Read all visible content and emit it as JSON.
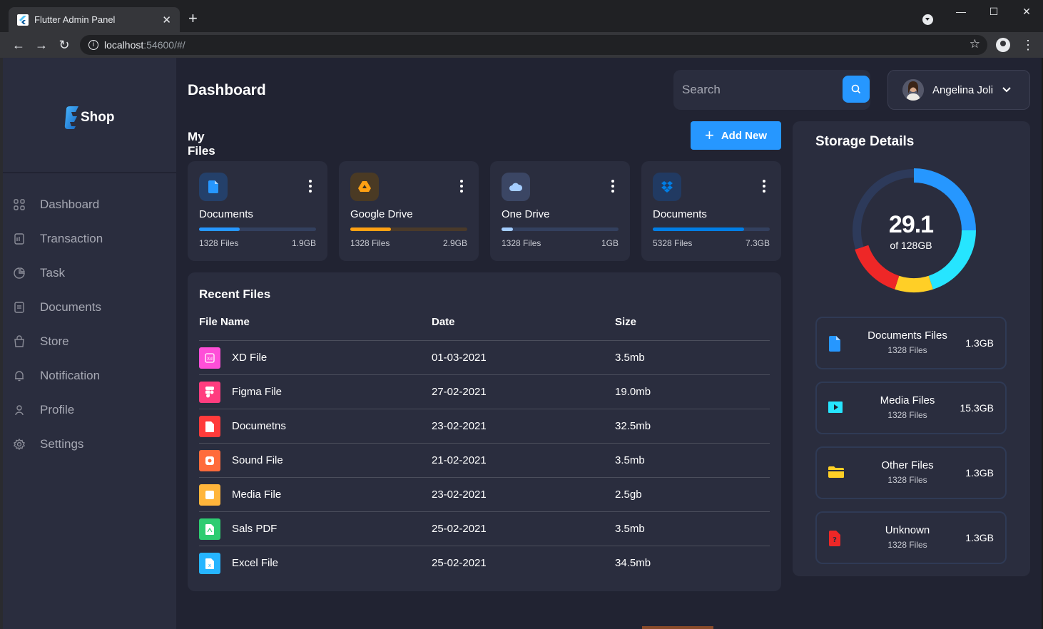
{
  "browser": {
    "tab_title": "Flutter Admin Panel",
    "url_host": "localhost",
    "url_path": ":54600/#/"
  },
  "sidebar": {
    "logo_text": "Shop",
    "items": [
      {
        "label": "Dashboard",
        "icon": "grid-icon"
      },
      {
        "label": "Transaction",
        "icon": "receipt-icon"
      },
      {
        "label": "Task",
        "icon": "pie-icon"
      },
      {
        "label": "Documents",
        "icon": "document-icon"
      },
      {
        "label": "Store",
        "icon": "bag-icon"
      },
      {
        "label": "Notification",
        "icon": "bell-icon"
      },
      {
        "label": "Profile",
        "icon": "user-icon"
      },
      {
        "label": "Settings",
        "icon": "gear-icon"
      }
    ]
  },
  "header": {
    "title": "Dashboard",
    "search_placeholder": "Search",
    "profile_name": "Angelina Joli"
  },
  "my_files": {
    "title": "My Files",
    "add_label": "Add New",
    "cards": [
      {
        "title": "Documents",
        "files": "1328 Files",
        "size": "1.9GB",
        "percent": 35,
        "color": "#2697ff",
        "icon": "document-icon"
      },
      {
        "title": "Google Drive",
        "files": "1328 Files",
        "size": "2.9GB",
        "percent": 35,
        "color": "#ffa113",
        "icon": "google-drive-icon"
      },
      {
        "title": "One Drive",
        "files": "1328 Files",
        "size": "1GB",
        "percent": 10,
        "color": "#a4cdff",
        "icon": "cloud-icon"
      },
      {
        "title": "Documents",
        "files": "5328 Files",
        "size": "7.3GB",
        "percent": 78,
        "color": "#007ee5",
        "icon": "dropbox-icon"
      }
    ]
  },
  "recent_files": {
    "title": "Recent Files",
    "columns": [
      "File Name",
      "Date",
      "Size"
    ],
    "rows": [
      {
        "name": "XD File",
        "date": "01-03-2021",
        "size": "3.5mb",
        "color": "#ff4fd8",
        "icon": "xd-file-icon"
      },
      {
        "name": "Figma File",
        "date": "27-02-2021",
        "size": "19.0mb",
        "color": "#ff3d7f",
        "icon": "figma-icon"
      },
      {
        "name": "Documetns",
        "date": "23-02-2021",
        "size": "32.5mb",
        "color": "#ff3b3b",
        "icon": "document-icon"
      },
      {
        "name": "Sound File",
        "date": "21-02-2021",
        "size": "3.5mb",
        "color": "#ff6b3b",
        "icon": "sound-icon"
      },
      {
        "name": "Media File",
        "date": "23-02-2021",
        "size": "2.5gb",
        "color": "#ffb53b",
        "icon": "media-icon"
      },
      {
        "name": "Sals PDF",
        "date": "25-02-2021",
        "size": "3.5mb",
        "color": "#2ecc71",
        "icon": "pdf-icon"
      },
      {
        "name": "Excel File",
        "date": "25-02-2021",
        "size": "34.5mb",
        "color": "#26b5ff",
        "icon": "excel-icon"
      }
    ]
  },
  "storage": {
    "title": "Storage Details",
    "used": "29.1",
    "total_label": "of 128GB",
    "segments": [
      {
        "color": "#2697ff",
        "value": 25
      },
      {
        "color": "#26e5ff",
        "value": 20
      },
      {
        "color": "#ffcf26",
        "value": 10
      },
      {
        "color": "#ee2727",
        "value": 15
      },
      {
        "color": "#2d3a5a",
        "value": 30
      }
    ],
    "items": [
      {
        "title": "Documents Files",
        "files": "1328 Files",
        "size": "1.3GB",
        "icon": "document-icon",
        "color": "#2697ff"
      },
      {
        "title": "Media Files",
        "files": "1328 Files",
        "size": "15.3GB",
        "icon": "media-icon",
        "color": "#26e5ff"
      },
      {
        "title": "Other Files",
        "files": "1328 Files",
        "size": "1.3GB",
        "icon": "folder-icon",
        "color": "#ffcf26"
      },
      {
        "title": "Unknown",
        "files": "1328 Files",
        "size": "1.3GB",
        "icon": "unknown-file-icon",
        "color": "#ee2727"
      }
    ]
  }
}
